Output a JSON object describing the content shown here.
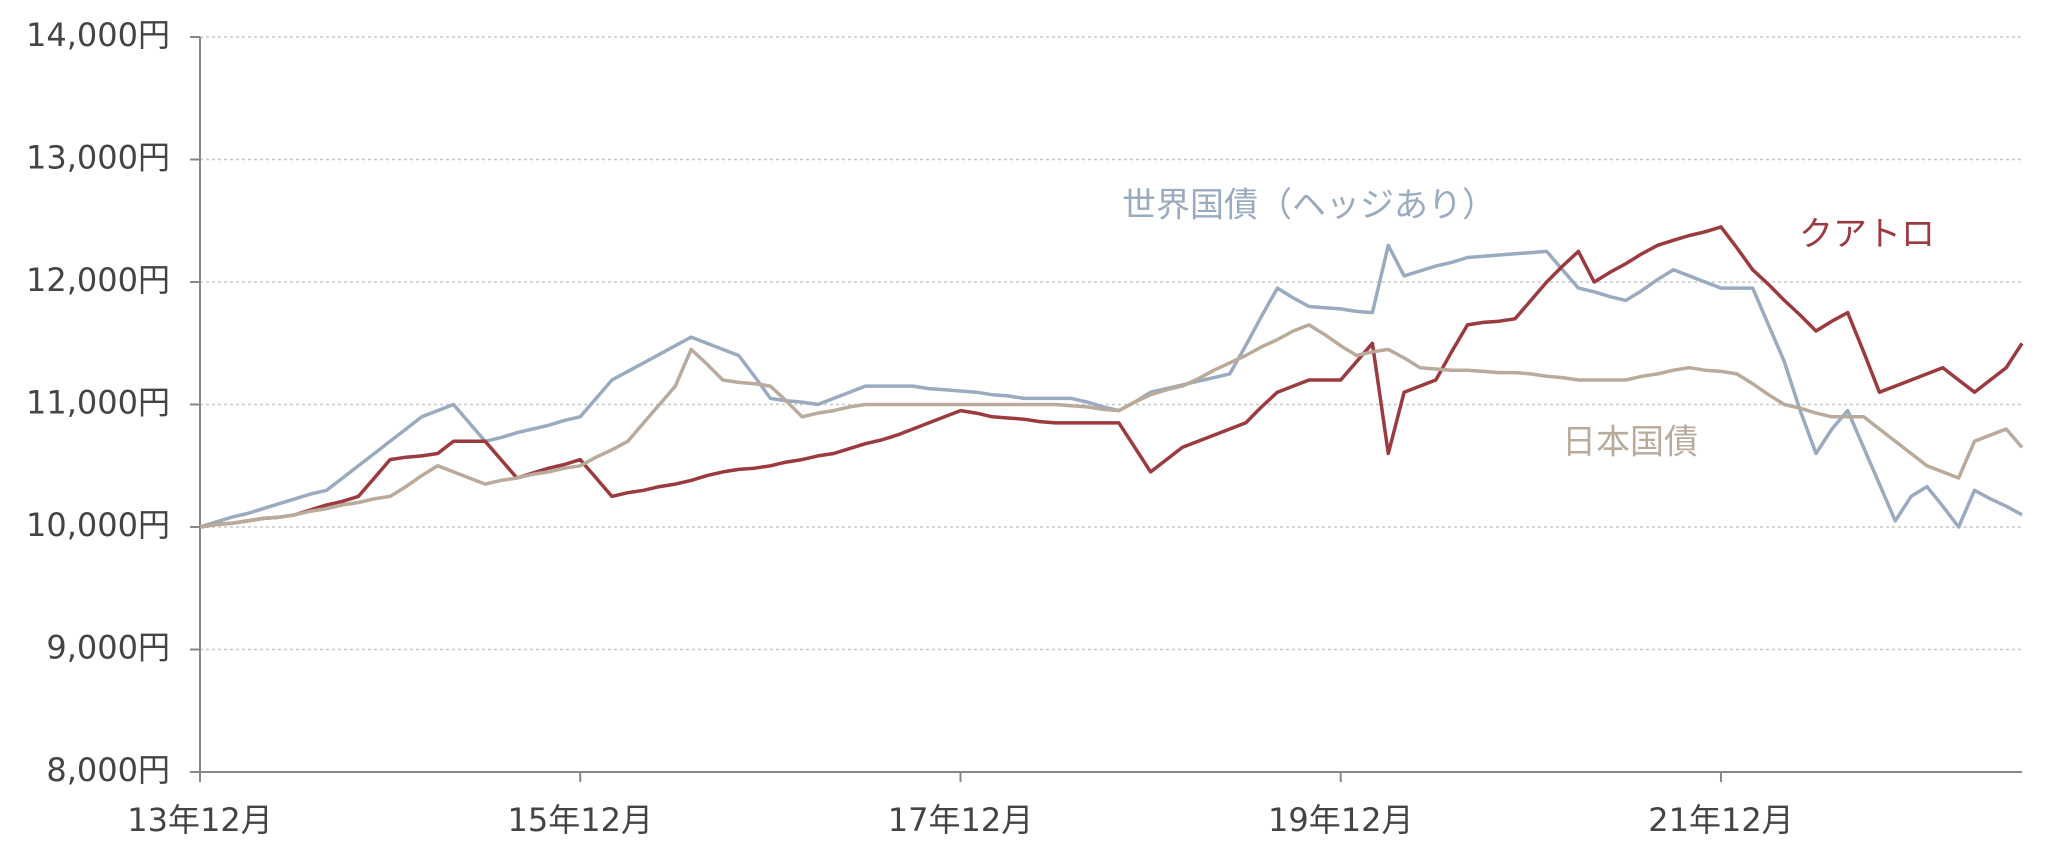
{
  "chart_data": {
    "type": "line",
    "categories": [
      "13年12月",
      null,
      null,
      null,
      null,
      null,
      null,
      null,
      null,
      null,
      null,
      null,
      null,
      null,
      null,
      null,
      null,
      null,
      null,
      null,
      null,
      null,
      null,
      null,
      "15年12月",
      null,
      null,
      null,
      null,
      null,
      null,
      null,
      null,
      null,
      null,
      null,
      null,
      null,
      null,
      null,
      null,
      null,
      null,
      null,
      null,
      null,
      null,
      null,
      "17年12月",
      null,
      null,
      null,
      null,
      null,
      null,
      null,
      null,
      null,
      null,
      null,
      null,
      null,
      null,
      null,
      null,
      null,
      null,
      null,
      null,
      null,
      null,
      null,
      "19年12月",
      null,
      null,
      null,
      null,
      null,
      null,
      null,
      null,
      null,
      null,
      null,
      null,
      null,
      null,
      null,
      null,
      null,
      null,
      null,
      null,
      null,
      null,
      null,
      "21年12月",
      null,
      null,
      null,
      null,
      null,
      null,
      null,
      null,
      null,
      null,
      null,
      null,
      null,
      null,
      null,
      null,
      null,
      null,
      null
    ],
    "series": [
      {
        "name": "世界国債（ヘッジあり）",
        "color": "#9aabc0",
        "values": [
          10000,
          10040,
          10080,
          10110,
          10150,
          10190,
          10230,
          10270,
          10300,
          10400,
          10500,
          10600,
          10700,
          10800,
          10900,
          10950,
          11000,
          10850,
          10700,
          10730,
          10770,
          10800,
          10830,
          10870,
          10900,
          11050,
          11200,
          11270,
          11340,
          11410,
          11480,
          11550,
          11500,
          11450,
          11400,
          11230,
          11050,
          11030,
          11020,
          11000,
          11050,
          11100,
          11150,
          11150,
          11150,
          11150,
          11130,
          11120,
          11110,
          11100,
          11080,
          11070,
          11050,
          11050,
          11050,
          11050,
          11020,
          10980,
          10950,
          11020,
          11100,
          11130,
          11160,
          11190,
          11220,
          11250,
          11480,
          11720,
          11950,
          11870,
          11800,
          11790,
          11780,
          11760,
          11750,
          12300,
          12050,
          12090,
          12130,
          12160,
          12200,
          12210,
          12220,
          12230,
          12240,
          12250,
          12100,
          11950,
          11920,
          11880,
          11850,
          11930,
          12020,
          12100,
          12050,
          12000,
          11950,
          11950,
          11950,
          11650,
          11350,
          10950,
          10600,
          10800,
          10950,
          10650,
          10350,
          10050,
          10250,
          10330,
          10170,
          10000,
          10300,
          10230,
          10170,
          10100
        ]
      },
      {
        "name": "クアトロ",
        "color": "#9b3a3f",
        "values": [
          10000,
          10020,
          10030,
          10050,
          10070,
          10080,
          10100,
          10140,
          10180,
          10210,
          10250,
          10400,
          10550,
          10570,
          10580,
          10600,
          10700,
          10700,
          10700,
          10550,
          10400,
          10440,
          10480,
          10510,
          10550,
          10400,
          10250,
          10280,
          10300,
          10330,
          10350,
          10380,
          10420,
          10450,
          10470,
          10480,
          10500,
          10530,
          10550,
          10580,
          10600,
          10640,
          10680,
          10710,
          10750,
          10800,
          10850,
          10900,
          10950,
          10930,
          10900,
          10890,
          10880,
          10860,
          10850,
          10850,
          10850,
          10850,
          10850,
          10650,
          10450,
          10550,
          10650,
          10700,
          10750,
          10800,
          10850,
          10980,
          11100,
          11150,
          11200,
          11200,
          11200,
          11350,
          11500,
          10600,
          11100,
          11150,
          11200,
          11430,
          11650,
          11670,
          11680,
          11700,
          11850,
          12000,
          12130,
          12250,
          12000,
          12080,
          12150,
          12230,
          12300,
          12340,
          12380,
          12410,
          12450,
          12280,
          12100,
          11980,
          11850,
          11730,
          11600,
          11680,
          11750,
          11430,
          11100,
          11150,
          11200,
          11250,
          11300,
          11200,
          11100,
          11200,
          11300,
          11500
        ]
      },
      {
        "name": "日本国債",
        "color": "#b9aa9c",
        "values": [
          10000,
          10020,
          10030,
          10050,
          10070,
          10080,
          10100,
          10130,
          10150,
          10180,
          10200,
          10230,
          10250,
          10330,
          10420,
          10500,
          10450,
          10400,
          10350,
          10380,
          10400,
          10430,
          10450,
          10480,
          10500,
          10570,
          10630,
          10700,
          10850,
          11000,
          11150,
          11450,
          11330,
          11200,
          11180,
          11170,
          11150,
          11030,
          10900,
          10930,
          10950,
          10980,
          11000,
          11000,
          11000,
          11000,
          11000,
          11000,
          11000,
          11000,
          11000,
          11000,
          11000,
          11000,
          11000,
          10990,
          10980,
          10960,
          10950,
          11020,
          11080,
          11120,
          11150,
          11210,
          11280,
          11340,
          11400,
          11470,
          11530,
          11600,
          11650,
          11570,
          11480,
          11400,
          11430,
          11450,
          11380,
          11300,
          11290,
          11280,
          11280,
          11270,
          11260,
          11260,
          11250,
          11230,
          11220,
          11200,
          11200,
          11200,
          11200,
          11230,
          11250,
          11280,
          11300,
          11280,
          11270,
          11250,
          11170,
          11080,
          11000,
          10970,
          10930,
          10900,
          10900,
          10900,
          10800,
          10700,
          10600,
          10500,
          10450,
          10400,
          10700,
          10750,
          10800,
          10650
        ]
      }
    ],
    "ylim": [
      8000,
      14000
    ],
    "yticks": [
      {
        "value": 8000,
        "label": "8,000円"
      },
      {
        "value": 9000,
        "label": "9,000円"
      },
      {
        "value": 10000,
        "label": "10,000円"
      },
      {
        "value": 11000,
        "label": "11,000円"
      },
      {
        "value": 12000,
        "label": "12,000円"
      },
      {
        "value": 13000,
        "label": "13,000円"
      },
      {
        "value": 14000,
        "label": "14,000円"
      }
    ],
    "grid": true
  }
}
